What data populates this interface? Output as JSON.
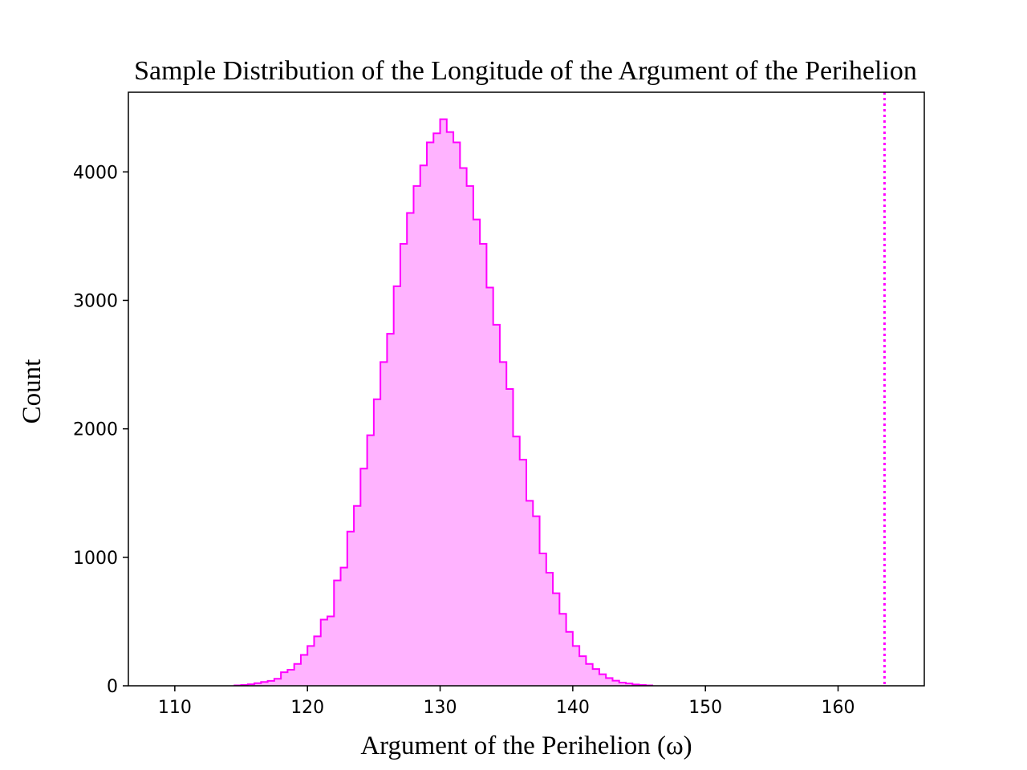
{
  "chart_data": {
    "type": "histogram",
    "title": "Sample Distribution of the Longitude of the Argument of the Perihelion",
    "xlabel": "Argument of the Perihelion (ω)",
    "ylabel": "Count",
    "xlim": [
      106.5,
      166.5
    ],
    "ylim": [
      0,
      4620
    ],
    "xticks": [
      110,
      120,
      130,
      140,
      150,
      160
    ],
    "yticks": [
      0,
      1000,
      2000,
      3000,
      4000
    ],
    "bin_start": 114.5,
    "bin_width": 0.5,
    "counts": [
      3,
      6,
      12,
      20,
      30,
      38,
      55,
      105,
      125,
      170,
      240,
      310,
      385,
      515,
      540,
      820,
      920,
      1200,
      1400,
      1690,
      1950,
      2230,
      2520,
      2740,
      3110,
      3440,
      3680,
      3890,
      4050,
      4230,
      4300,
      4410,
      4310,
      4230,
      4030,
      3890,
      3630,
      3440,
      3100,
      2810,
      2520,
      2310,
      1940,
      1760,
      1440,
      1320,
      1030,
      880,
      720,
      560,
      420,
      310,
      230,
      170,
      130,
      90,
      60,
      40,
      25,
      18,
      10,
      6,
      3
    ],
    "fill_color": "#ffb3ff",
    "edge_color": "#ff00ff",
    "reference_line": {
      "x": 163.5,
      "style": "dotted",
      "color": "#ff00ff"
    },
    "grid": false
  }
}
